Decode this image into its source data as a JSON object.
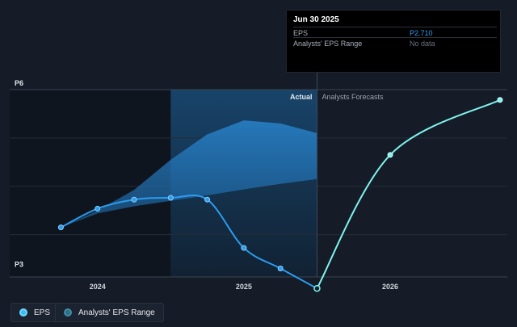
{
  "tooltip": {
    "date": "Jun 30 2025",
    "rows": [
      {
        "label": "EPS",
        "value": "P2.710"
      },
      {
        "label": "Analysts' EPS Range",
        "value": "No data"
      }
    ]
  },
  "legend": [
    {
      "label": "EPS"
    },
    {
      "label": "Analysts' EPS Range"
    }
  ],
  "colors": {
    "background": "#151c27",
    "actual_line": "#2b9cf0",
    "forecast_line": "#7ff3ee",
    "range_fill": "#1f6aa8"
  },
  "chart_data": {
    "type": "line",
    "section_labels": {
      "actual": "Actual",
      "forecast": "Analysts Forecasts"
    },
    "y_tick_labels": [
      {
        "value": 6,
        "label": "P6"
      },
      {
        "value": 3,
        "label": "P3"
      }
    ],
    "x_tick_labels": [
      {
        "value": 2024.0,
        "label": "2024"
      },
      {
        "value": 2025.0,
        "label": "2025"
      },
      {
        "value": 2026.0,
        "label": "2026"
      }
    ],
    "xlim": [
      2023.4,
      2026.8
    ],
    "ylim": [
      2.9,
      6.0
    ],
    "grid": true,
    "divider_x": 2025.5,
    "series": [
      {
        "role": "actual",
        "points": [
          {
            "x": 2023.75,
            "y": 3.72
          },
          {
            "x": 2024.0,
            "y": 4.03
          },
          {
            "x": 2024.25,
            "y": 4.18
          },
          {
            "x": 2024.5,
            "y": 4.21
          },
          {
            "x": 2024.75,
            "y": 4.18
          },
          {
            "x": 2025.0,
            "y": 3.38
          },
          {
            "x": 2025.25,
            "y": 3.04
          },
          {
            "x": 2025.5,
            "y": 2.71
          }
        ]
      },
      {
        "role": "forecast",
        "points": [
          {
            "x": 2025.5,
            "y": 2.71
          },
          {
            "x": 2026.0,
            "y": 4.92
          },
          {
            "x": 2026.75,
            "y": 5.83
          }
        ]
      }
    ],
    "range_band": [
      {
        "x": 2023.75,
        "low": 3.72,
        "high": 3.72
      },
      {
        "x": 2024.0,
        "low": 3.95,
        "high": 4.0
      },
      {
        "x": 2024.25,
        "low": 4.07,
        "high": 4.34
      },
      {
        "x": 2024.5,
        "low": 4.16,
        "high": 4.84
      },
      {
        "x": 2024.75,
        "low": 4.25,
        "high": 5.26
      },
      {
        "x": 2025.0,
        "low": 4.35,
        "high": 5.49
      },
      {
        "x": 2025.25,
        "low": 4.44,
        "high": 5.44
      },
      {
        "x": 2025.5,
        "low": 4.52,
        "high": 5.28
      }
    ]
  }
}
